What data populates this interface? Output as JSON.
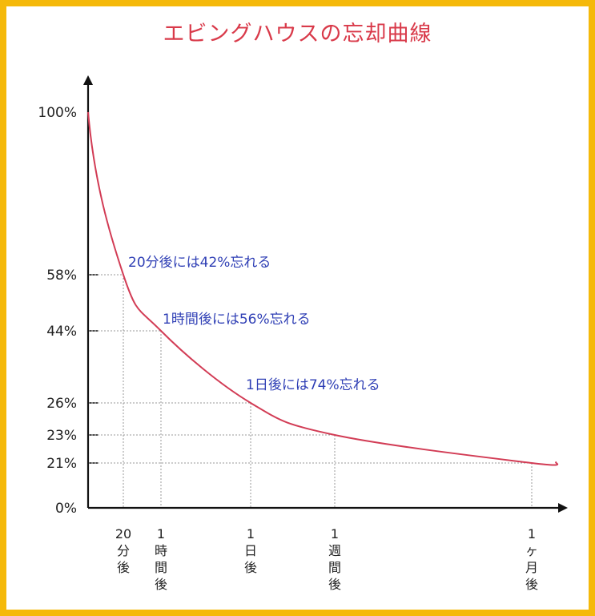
{
  "colors": {
    "border": "#f5b90a",
    "title": "#d93a4a",
    "curve": "#d23c55",
    "annotation": "#2f3fb5",
    "guide": "#9a9a9a"
  },
  "chart_data": {
    "type": "line",
    "title": "エビングハウスの忘却曲線",
    "xlabel": "",
    "ylabel": "",
    "ylim": [
      0,
      100
    ],
    "grid": false,
    "y_ticks": [
      "0%",
      "21%",
      "23%",
      "26%",
      "44%",
      "58%",
      "100%"
    ],
    "x_ticks": [
      {
        "label": "20分後",
        "lines": [
          "20",
          "分",
          "後"
        ]
      },
      {
        "label": "1時間後",
        "lines": [
          "1",
          "時",
          "間",
          "後"
        ]
      },
      {
        "label": "1日後",
        "lines": [
          "1",
          "日",
          "後"
        ]
      },
      {
        "label": "1週間後",
        "lines": [
          "1",
          "週",
          "間",
          "後"
        ]
      },
      {
        "label": "1ヶ月後",
        "lines": [
          "1",
          "ヶ",
          "月",
          "後"
        ]
      }
    ],
    "series": [
      {
        "points": [
          {
            "x": "0",
            "y": 100
          },
          {
            "x": "20分後",
            "y": 58
          },
          {
            "x": "1時間後",
            "y": 44
          },
          {
            "x": "1日後",
            "y": 26
          },
          {
            "x": "1週間後",
            "y": 23
          },
          {
            "x": "1ヶ月後",
            "y": 21
          }
        ]
      }
    ],
    "annotations": [
      {
        "text": "20分後には42%忘れる",
        "x": "20分後",
        "y": 58
      },
      {
        "text": "1時間後には56%忘れる",
        "x": "1時間後",
        "y": 44
      },
      {
        "text": "1日後には74%忘れる",
        "x": "1日後",
        "y": 26
      }
    ]
  }
}
